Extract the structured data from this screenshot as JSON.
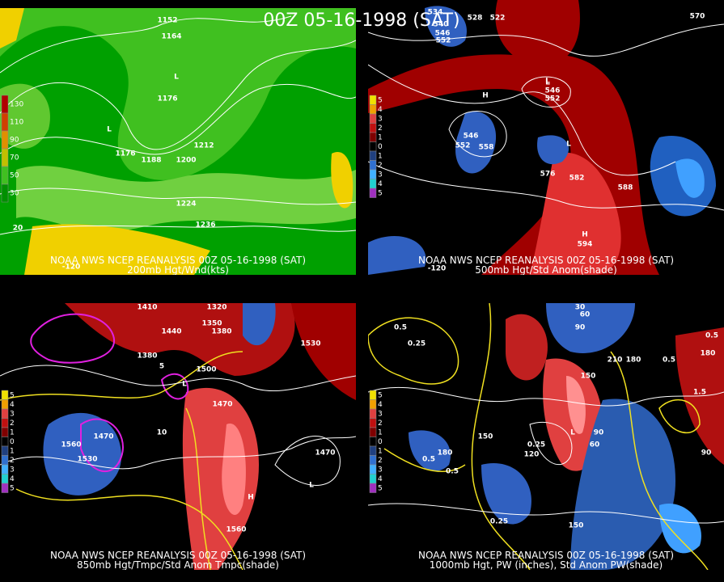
{
  "title": "00Z 05-16-1998 (SAT)",
  "panels": [
    {
      "source": "NOAA NWS NCEP REANALYSIS 00Z 05-16-1998 (SAT)",
      "caption": "200mb Hgt/Wnd(kts)",
      "colorbar": [
        "130",
        "110",
        "90",
        "70",
        "50",
        "30"
      ],
      "labels": [
        "1152",
        "1164",
        "L",
        "1176",
        "L",
        "1176",
        "1188",
        "1200",
        "1212",
        "1224",
        "1236",
        "20",
        "-120"
      ]
    },
    {
      "source": "NOAA NWS NCEP REANALYSIS 00Z 05-16-1998 (SAT)",
      "caption": "500mb Hgt/Std Anom(shade)",
      "colorbar": [
        "5",
        "4",
        "3",
        "2",
        "1",
        "0",
        "1",
        "2",
        "3",
        "4",
        "5"
      ],
      "labels": [
        "534",
        "540",
        "546",
        "552",
        "528",
        "522",
        "570",
        "H",
        "L",
        "546",
        "552",
        "558",
        "L",
        "546",
        "552",
        "L",
        "576",
        "582",
        "588",
        "H",
        "594",
        "-120"
      ]
    },
    {
      "source": "NOAA NWS NCEP REANALYSIS 00Z 05-16-1998 (SAT)",
      "caption": "850mb Hgt/Tmpc/Std Anom Tmpc(shade)",
      "colorbar": [
        "5",
        "4",
        "3",
        "2",
        "1",
        "0",
        "1",
        "2",
        "3",
        "4",
        "5"
      ],
      "labels": [
        "1410",
        "1320",
        "1350",
        "1380",
        "1440",
        "1380",
        "1500",
        "5",
        "L",
        "1470",
        "10",
        "1560",
        "1470",
        "1530",
        "1530",
        "L",
        "1470",
        "H",
        "1560"
      ]
    },
    {
      "source": "NOAA NWS NCEP REANALYSIS 00Z 05-16-1998 (SAT)",
      "caption": "1000mb Hgt, PW (inches), Std Anom PW(shade)",
      "colorbar": [
        "5",
        "4",
        "3",
        "2",
        "1",
        "0",
        "1",
        "2",
        "3",
        "4",
        "5"
      ],
      "labels": [
        "30",
        "60",
        "90",
        "0.5",
        "0.25",
        "210",
        "180",
        "180",
        "0.5",
        "0.5",
        "150",
        "1.5",
        "0.25",
        "L",
        "180",
        "150",
        "120",
        "0.5",
        "0.5",
        "90",
        "60",
        "90",
        "0.25",
        "150"
      ]
    }
  ]
}
